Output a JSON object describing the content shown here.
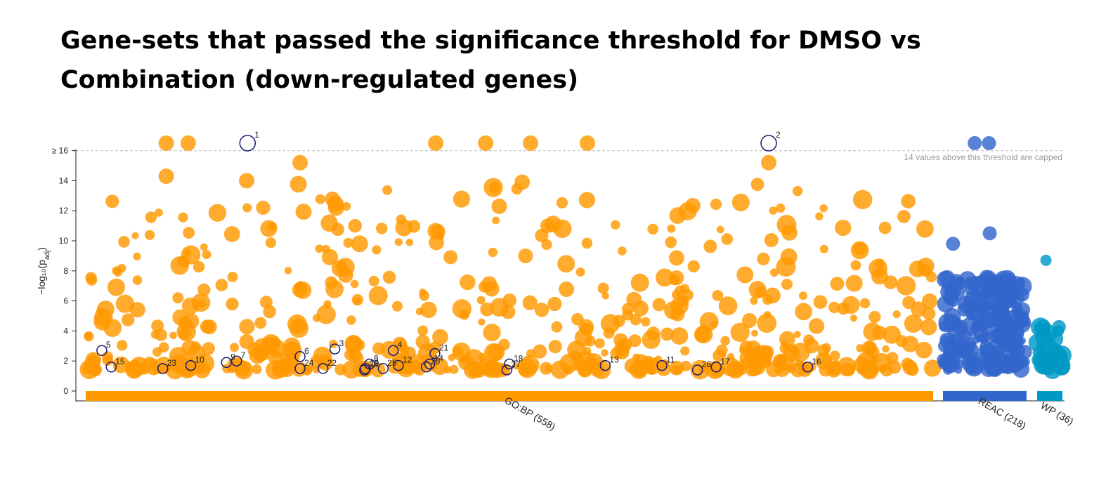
{
  "chart_data": {
    "type": "scatter",
    "title": "Gene-sets that passed the significance threshold for DMSO vs Combination (down-regulated genes)",
    "ylabel": "−log₁₀(p",
    "ylabel_sub": "adj",
    "ylabel_close": ")",
    "ylim": [
      0,
      17.5
    ],
    "y_ticks": [
      {
        "v": 0,
        "label": "0"
      },
      {
        "v": 2,
        "label": "2"
      },
      {
        "v": 4,
        "label": "4"
      },
      {
        "v": 6,
        "label": "6"
      },
      {
        "v": 8,
        "label": "8"
      },
      {
        "v": 10,
        "label": "10"
      },
      {
        "v": 12,
        "label": "12"
      },
      {
        "v": 14,
        "label": "14"
      },
      {
        "v": 16,
        "label": "≥ 16"
      }
    ],
    "cap_value": 16,
    "cap_note": "14 values above this threshold are capped",
    "sources": [
      {
        "name": "GO:BP",
        "label": "GO:BP (558)",
        "count": 558,
        "color": "#ff9900"
      },
      {
        "name": "REAC",
        "label": "REAC (218)",
        "count": 218,
        "color": "#3366cc"
      },
      {
        "name": "WP",
        "label": "WP (36)",
        "count": 36,
        "color": "#0099c6"
      }
    ],
    "highlighted_terms": [
      {
        "id": "1",
        "source": "GO:BP",
        "pos": 0.191,
        "value": 16.5
      },
      {
        "id": "2",
        "source": "GO:BP",
        "pos": 0.806,
        "value": 16.5
      },
      {
        "id": "3",
        "source": "GO:BP",
        "pos": 0.294,
        "value": 2.8
      },
      {
        "id": "4",
        "source": "GO:BP",
        "pos": 0.363,
        "value": 2.7
      },
      {
        "id": "5",
        "source": "GO:BP",
        "pos": 0.019,
        "value": 2.7
      },
      {
        "id": "6",
        "source": "GO:BP",
        "pos": 0.253,
        "value": 2.3
      },
      {
        "id": "7",
        "source": "GO:BP",
        "pos": 0.178,
        "value": 2.0
      },
      {
        "id": "8",
        "source": "GO:BP",
        "pos": 0.335,
        "value": 1.8
      },
      {
        "id": "9",
        "source": "GO:BP",
        "pos": 0.166,
        "value": 1.9
      },
      {
        "id": "10",
        "source": "GO:BP",
        "pos": 0.124,
        "value": 1.7
      },
      {
        "id": "11",
        "source": "GO:BP",
        "pos": 0.68,
        "value": 1.7
      },
      {
        "id": "12",
        "source": "GO:BP",
        "pos": 0.369,
        "value": 1.7
      },
      {
        "id": "13",
        "source": "GO:BP",
        "pos": 0.613,
        "value": 1.7
      },
      {
        "id": "14",
        "source": "GO:BP",
        "pos": 0.406,
        "value": 1.8
      },
      {
        "id": "15",
        "source": "GO:BP",
        "pos": 0.03,
        "value": 1.6
      },
      {
        "id": "16",
        "source": "GO:BP",
        "pos": 0.852,
        "value": 1.6
      },
      {
        "id": "17",
        "source": "GO:BP",
        "pos": 0.744,
        "value": 1.6
      },
      {
        "id": "18",
        "source": "GO:BP",
        "pos": 0.5,
        "value": 1.8
      },
      {
        "id": "19",
        "source": "GO:BP",
        "pos": 0.33,
        "value": 1.5
      },
      {
        "id": "20",
        "source": "GO:BP",
        "pos": 0.402,
        "value": 1.6
      },
      {
        "id": "21",
        "source": "GO:BP",
        "pos": 0.412,
        "value": 2.5
      },
      {
        "id": "22",
        "source": "GO:BP",
        "pos": 0.28,
        "value": 1.5
      },
      {
        "id": "23",
        "source": "GO:BP",
        "pos": 0.091,
        "value": 1.5
      },
      {
        "id": "24",
        "source": "GO:BP",
        "pos": 0.253,
        "value": 1.5
      },
      {
        "id": "25",
        "source": "GO:BP",
        "pos": 0.351,
        "value": 1.5
      },
      {
        "id": "26",
        "source": "GO:BP",
        "pos": 0.722,
        "value": 1.4
      },
      {
        "id": "27",
        "source": "GO:BP",
        "pos": 0.497,
        "value": 1.4
      },
      {
        "id": "28",
        "source": "GO:BP",
        "pos": 0.329,
        "value": 1.4
      }
    ]
  }
}
